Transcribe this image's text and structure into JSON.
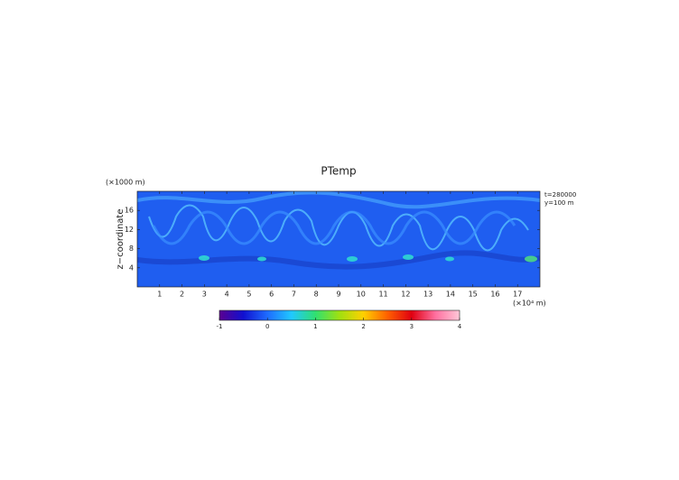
{
  "chart_data": {
    "type": "heatmap",
    "title": "PTemp",
    "ylabel": "z−coordinate",
    "y_unit": "(×1000 m)",
    "x_unit": "(×10⁴ m)",
    "annotations": [
      "t=280000",
      "y=100 m"
    ],
    "xlim": [
      0,
      18
    ],
    "xticks": [
      1,
      2,
      3,
      4,
      5,
      6,
      7,
      8,
      9,
      10,
      11,
      12,
      13,
      14,
      15,
      16,
      17
    ],
    "ylim": [
      0,
      20
    ],
    "yticks": [
      4,
      8,
      12,
      16
    ],
    "clim": [
      -1,
      4
    ],
    "cticks": [
      -1,
      0,
      1,
      2,
      3,
      4
    ],
    "colormap": [
      "#5a0090",
      "#1010d0",
      "#1e6cff",
      "#20c8ff",
      "#30e070",
      "#a0e010",
      "#ffd000",
      "#ff6000",
      "#e00010",
      "#ff70a0",
      "#ffc8d8"
    ]
  }
}
